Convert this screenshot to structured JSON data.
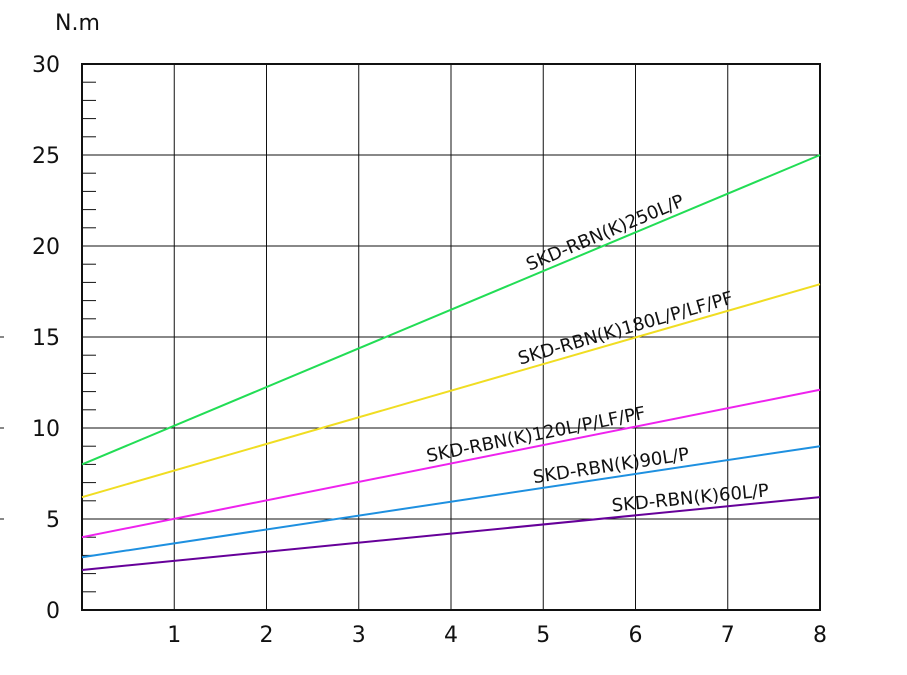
{
  "chart_data": {
    "type": "line",
    "title": "",
    "ylabel": "N.m",
    "xlabel": "",
    "xlim": [
      0,
      8
    ],
    "ylim": [
      0,
      30
    ],
    "x_ticks": [
      "1",
      "2",
      "3",
      "4",
      "5",
      "6",
      "7",
      "8"
    ],
    "y_ticks": [
      "0",
      "5",
      "10",
      "15",
      "20",
      "25",
      "30"
    ],
    "grid": true,
    "series": [
      {
        "name": "SKD-RBN(K)250L/P",
        "color": "#22dd55",
        "x": [
          0,
          8
        ],
        "y": [
          8,
          25
        ]
      },
      {
        "name": "SKD-RBN(K)180L/P/LF/PF",
        "color": "#f0dd22",
        "x": [
          0,
          8
        ],
        "y": [
          6.2,
          17.9
        ]
      },
      {
        "name": "SKD-RBN(K)120L/P/LF/PF",
        "color": "#ee22ee",
        "x": [
          0,
          8
        ],
        "y": [
          4.0,
          12.1
        ]
      },
      {
        "name": "SKD-RBN(K)90L/P",
        "color": "#1e90e0",
        "x": [
          0,
          8
        ],
        "y": [
          2.9,
          9.0
        ]
      },
      {
        "name": "SKD-RBN(K)60L/P",
        "color": "#660099",
        "x": [
          0,
          8
        ],
        "y": [
          2.2,
          6.2
        ]
      }
    ]
  }
}
